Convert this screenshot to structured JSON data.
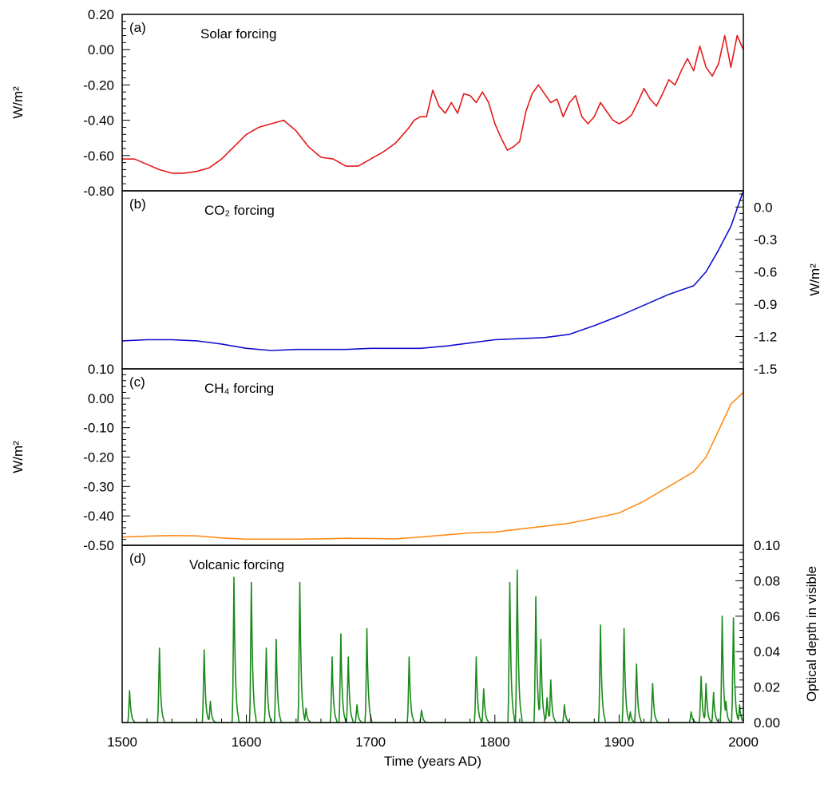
{
  "chart_data": [
    {
      "type": "line",
      "panel": "(a)",
      "title": "Solar forcing",
      "ylabel": "W/m²",
      "ylim": [
        -0.8,
        0.2
      ],
      "yticks": [
        "0.20",
        "0.00",
        "-0.20",
        "-0.40",
        "-0.60",
        "-0.80"
      ],
      "color": "#e31a1c",
      "x": [
        1500,
        1510,
        1520,
        1530,
        1540,
        1550,
        1560,
        1570,
        1580,
        1590,
        1600,
        1610,
        1620,
        1630,
        1640,
        1650,
        1660,
        1670,
        1680,
        1690,
        1700,
        1710,
        1720,
        1730,
        1735,
        1740,
        1745,
        1750,
        1755,
        1760,
        1765,
        1770,
        1775,
        1780,
        1785,
        1790,
        1795,
        1800,
        1805,
        1810,
        1815,
        1820,
        1825,
        1830,
        1835,
        1840,
        1845,
        1850,
        1855,
        1860,
        1865,
        1870,
        1875,
        1880,
        1885,
        1890,
        1895,
        1900,
        1905,
        1910,
        1915,
        1920,
        1925,
        1930,
        1935,
        1940,
        1945,
        1950,
        1955,
        1960,
        1965,
        1970,
        1975,
        1980,
        1985,
        1990,
        1995,
        2000
      ],
      "y": [
        -0.62,
        -0.62,
        -0.65,
        -0.68,
        -0.7,
        -0.7,
        -0.69,
        -0.67,
        -0.62,
        -0.55,
        -0.48,
        -0.44,
        -0.42,
        -0.4,
        -0.46,
        -0.55,
        -0.61,
        -0.62,
        -0.66,
        -0.66,
        -0.62,
        -0.58,
        -0.53,
        -0.45,
        -0.4,
        -0.38,
        -0.38,
        -0.23,
        -0.32,
        -0.36,
        -0.3,
        -0.36,
        -0.25,
        -0.26,
        -0.3,
        -0.24,
        -0.3,
        -0.42,
        -0.5,
        -0.57,
        -0.55,
        -0.52,
        -0.35,
        -0.25,
        -0.2,
        -0.25,
        -0.3,
        -0.28,
        -0.38,
        -0.3,
        -0.26,
        -0.38,
        -0.42,
        -0.38,
        -0.3,
        -0.35,
        -0.4,
        -0.42,
        -0.4,
        -0.37,
        -0.3,
        -0.22,
        -0.28,
        -0.32,
        -0.25,
        -0.17,
        -0.2,
        -0.12,
        -0.05,
        -0.12,
        0.02,
        -0.1,
        -0.15,
        -0.08,
        0.08,
        -0.1,
        0.08,
        0.0
      ]
    },
    {
      "type": "line",
      "panel": "(b)",
      "title": "CO₂ forcing",
      "ylabel": "W/m²",
      "ylim": [
        -1.5,
        0.15
      ],
      "yticks": [
        "0.0",
        "-0.3",
        "-0.6",
        "-0.9",
        "-1.2",
        "-1.5"
      ],
      "color": "#1010d0",
      "x": [
        1500,
        1520,
        1540,
        1560,
        1580,
        1600,
        1620,
        1640,
        1660,
        1680,
        1700,
        1720,
        1740,
        1760,
        1780,
        1800,
        1820,
        1840,
        1860,
        1880,
        1900,
        1920,
        1940,
        1960,
        1970,
        1980,
        1990,
        2000
      ],
      "y": [
        -1.24,
        -1.23,
        -1.23,
        -1.24,
        -1.27,
        -1.31,
        -1.33,
        -1.32,
        -1.32,
        -1.32,
        -1.31,
        -1.31,
        -1.31,
        -1.29,
        -1.26,
        -1.23,
        -1.22,
        -1.21,
        -1.18,
        -1.1,
        -1.01,
        -0.91,
        -0.81,
        -0.73,
        -0.6,
        -0.4,
        -0.18,
        0.15
      ]
    },
    {
      "type": "line",
      "panel": "(c)",
      "title": "CH₄ forcing",
      "ylabel": "W/m²",
      "ylim": [
        -0.5,
        0.1
      ],
      "yticks": [
        "0.10",
        "0.00",
        "-0.10",
        "-0.20",
        "-0.30",
        "-0.40",
        "-0.50"
      ],
      "color": "#ff8c1a",
      "x": [
        1500,
        1520,
        1540,
        1560,
        1580,
        1600,
        1620,
        1640,
        1660,
        1680,
        1700,
        1720,
        1740,
        1760,
        1780,
        1800,
        1820,
        1840,
        1860,
        1880,
        1900,
        1920,
        1940,
        1960,
        1970,
        1980,
        1990,
        2000
      ],
      "y": [
        -0.472,
        -0.469,
        -0.467,
        -0.468,
        -0.475,
        -0.479,
        -0.479,
        -0.479,
        -0.478,
        -0.476,
        -0.477,
        -0.478,
        -0.472,
        -0.465,
        -0.458,
        -0.455,
        -0.445,
        -0.435,
        -0.425,
        -0.408,
        -0.39,
        -0.35,
        -0.3,
        -0.25,
        -0.2,
        -0.11,
        -0.02,
        0.02
      ]
    },
    {
      "type": "line",
      "panel": "(d)",
      "title": "Volcanic forcing",
      "ylabel": "Optical depth in visible",
      "xlabel": "Time (years AD)",
      "ylim": [
        0,
        0.1
      ],
      "yticks": [
        "0.10",
        "0.08",
        "0.06",
        "0.04",
        "0.02",
        "0.00"
      ],
      "xlim": [
        1500,
        2000
      ],
      "xticks": [
        "1500",
        "1600",
        "1700",
        "1800",
        "1900",
        "2000"
      ],
      "color": "#1a8a1a",
      "eruptions": [
        {
          "year": 1506,
          "peak": 0.018
        },
        {
          "year": 1530,
          "peak": 0.042
        },
        {
          "year": 1566,
          "peak": 0.041
        },
        {
          "year": 1571,
          "peak": 0.012
        },
        {
          "year": 1590,
          "peak": 0.082
        },
        {
          "year": 1604,
          "peak": 0.079
        },
        {
          "year": 1616,
          "peak": 0.042
        },
        {
          "year": 1624,
          "peak": 0.047
        },
        {
          "year": 1643,
          "peak": 0.079
        },
        {
          "year": 1648,
          "peak": 0.008
        },
        {
          "year": 1669,
          "peak": 0.037
        },
        {
          "year": 1676,
          "peak": 0.05
        },
        {
          "year": 1682,
          "peak": 0.037
        },
        {
          "year": 1689,
          "peak": 0.01
        },
        {
          "year": 1697,
          "peak": 0.053
        },
        {
          "year": 1731,
          "peak": 0.037
        },
        {
          "year": 1741,
          "peak": 0.007
        },
        {
          "year": 1785,
          "peak": 0.037
        },
        {
          "year": 1791,
          "peak": 0.019
        },
        {
          "year": 1812,
          "peak": 0.079
        },
        {
          "year": 1818,
          "peak": 0.086
        },
        {
          "year": 1833,
          "peak": 0.071
        },
        {
          "year": 1837,
          "peak": 0.047
        },
        {
          "year": 1842,
          "peak": 0.014
        },
        {
          "year": 1845,
          "peak": 0.024
        },
        {
          "year": 1856,
          "peak": 0.01
        },
        {
          "year": 1885,
          "peak": 0.055
        },
        {
          "year": 1904,
          "peak": 0.053
        },
        {
          "year": 1909,
          "peak": 0.006
        },
        {
          "year": 1914,
          "peak": 0.033
        },
        {
          "year": 1927,
          "peak": 0.022
        },
        {
          "year": 1958,
          "peak": 0.006
        },
        {
          "year": 1966,
          "peak": 0.026
        },
        {
          "year": 1970,
          "peak": 0.022
        },
        {
          "year": 1976,
          "peak": 0.017
        },
        {
          "year": 1983,
          "peak": 0.06
        },
        {
          "year": 1986,
          "peak": 0.012
        },
        {
          "year": 1992,
          "peak": 0.059
        },
        {
          "year": 1997,
          "peak": 0.01
        }
      ]
    }
  ]
}
